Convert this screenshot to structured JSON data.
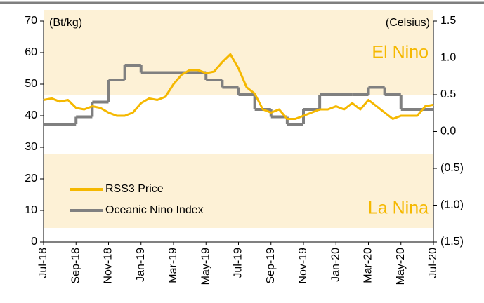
{
  "chart_data": {
    "type": "line",
    "annotations": {
      "left_unit": "(Bt/kg)",
      "right_unit": "(Celsius)",
      "el_nino": "El Nino",
      "la_nina": "La Nina"
    },
    "xlim": [
      0,
      24
    ],
    "xticks": [
      {
        "value": 0,
        "label": "Jul-18"
      },
      {
        "value": 2,
        "label": "Sep-18"
      },
      {
        "value": 4,
        "label": "Nov-18"
      },
      {
        "value": 6,
        "label": "Jan-19"
      },
      {
        "value": 8,
        "label": "Mar-19"
      },
      {
        "value": 10,
        "label": "May-19"
      },
      {
        "value": 12,
        "label": "Jul-19"
      },
      {
        "value": 14,
        "label": "Sep-19"
      },
      {
        "value": 16,
        "label": "Nov-19"
      },
      {
        "value": 18,
        "label": "Jan-20"
      },
      {
        "value": 20,
        "label": "Mar-20"
      },
      {
        "value": 22,
        "label": "May-20"
      },
      {
        "value": 24,
        "label": "Jul-20"
      }
    ],
    "ylim": [
      0,
      70
    ],
    "yticks": [
      0,
      10,
      20,
      30,
      40,
      50,
      60,
      70
    ],
    "y2lim": [
      -1.5,
      1.5
    ],
    "y2ticks": [
      {
        "value": -1.5,
        "label": "(1.5)"
      },
      {
        "value": -1.0,
        "label": "(1.0)"
      },
      {
        "value": -0.5,
        "label": "(0.5)"
      },
      {
        "value": 0,
        "label": "0.0"
      },
      0.5,
      {
        "value": 1.0,
        "label": "1.0"
      },
      1.5
    ],
    "series": [
      {
        "name": "RSS3 Price",
        "color": "#f5b800",
        "x": [
          0,
          0.5,
          1,
          1.5,
          2,
          2.5,
          3,
          3.5,
          4,
          4.5,
          5,
          5.5,
          6,
          6.5,
          7,
          7.5,
          8,
          8.5,
          9,
          9.5,
          10,
          10.5,
          11,
          11.5,
          12,
          12.5,
          13,
          13.5,
          14,
          14.5,
          15,
          15.5,
          16,
          16.5,
          17,
          17.5,
          18,
          18.5,
          19,
          19.5,
          20,
          20.5,
          21,
          21.5,
          22,
          22.5,
          23,
          23.5,
          24
        ],
        "values": [
          45,
          45.5,
          44.5,
          45,
          42.5,
          42,
          43,
          42.5,
          41,
          40,
          40,
          41,
          44,
          45.5,
          45,
          46,
          50,
          53,
          54.5,
          54.5,
          53.5,
          54,
          57,
          59.5,
          55,
          49,
          47,
          42,
          41,
          42,
          39,
          39,
          40,
          41,
          42,
          42,
          43,
          42,
          44,
          42,
          45,
          43,
          41,
          39,
          40,
          40,
          40,
          43,
          43.5
        ]
      },
      {
        "name": "Oceanic Nino Index",
        "color": "#808080",
        "axis": "y2",
        "x": [
          0,
          1,
          2,
          3,
          4,
          5,
          6,
          7,
          8,
          9,
          10,
          11,
          12,
          13,
          14,
          15,
          16,
          17,
          18,
          19,
          20,
          21,
          22,
          23
        ],
        "values": [
          0.1,
          0.1,
          0.2,
          0.4,
          0.7,
          0.9,
          0.8,
          0.8,
          0.8,
          0.8,
          0.7,
          0.6,
          0.5,
          0.3,
          0.2,
          0.1,
          0.3,
          0.5,
          0.5,
          0.5,
          0.6,
          0.5,
          0.3,
          0.3
        ]
      }
    ]
  }
}
